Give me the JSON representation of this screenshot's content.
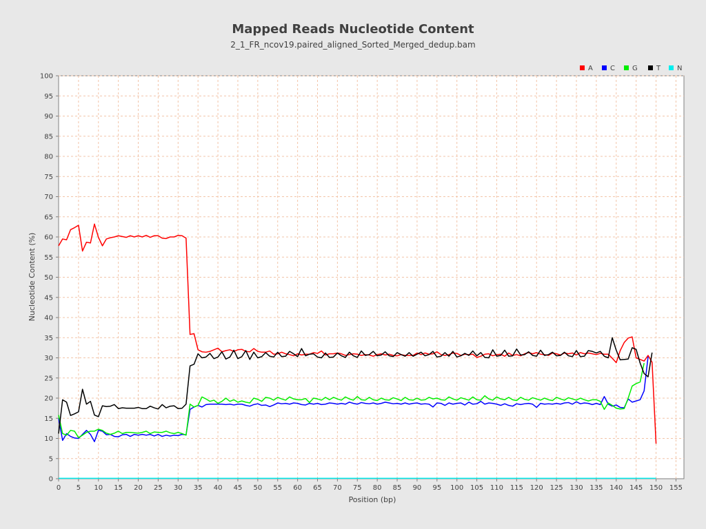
{
  "chart_data": {
    "type": "line",
    "title": "Mapped Reads Nucleotide Content",
    "subtitle": "2_1_FR_ncov19.paired_aligned_Sorted_Merged_dedup.bam",
    "xlabel": "Position (bp)",
    "ylabel": "Nucleotide Content (%)",
    "xlim": [
      0,
      157
    ],
    "ylim": [
      0,
      100
    ],
    "x_ticks": [
      0,
      5,
      10,
      15,
      20,
      25,
      30,
      35,
      40,
      45,
      50,
      55,
      60,
      65,
      70,
      75,
      80,
      85,
      90,
      95,
      100,
      105,
      110,
      115,
      120,
      125,
      130,
      135,
      140,
      145,
      150,
      155
    ],
    "y_ticks": [
      0,
      5,
      10,
      15,
      20,
      25,
      30,
      35,
      40,
      45,
      50,
      55,
      60,
      65,
      70,
      75,
      80,
      85,
      90,
      95,
      100
    ],
    "grid": true,
    "legend_position": "top-right",
    "series": [
      {
        "name": "A",
        "color": "#ff0000",
        "values": [
          57.8,
          59.5,
          59.3,
          61.8,
          62.3,
          62.9,
          56.5,
          58.7,
          58.5,
          63.2,
          59.9,
          57.8,
          59.5,
          59.8,
          60.0,
          60.3,
          60.1,
          59.9,
          60.3,
          60.0,
          60.3,
          60.0,
          60.4,
          59.9,
          60.3,
          60.3,
          59.7,
          59.6,
          60.0,
          60.0,
          60.4,
          60.3,
          59.7,
          35.8,
          36.0,
          32.0,
          31.5,
          31.4,
          31.6,
          32.0,
          32.4,
          31.5,
          31.8,
          32.0,
          31.6,
          32.0,
          32.1,
          31.6,
          31.5,
          32.3,
          31.6,
          31.4,
          31.4,
          31.7,
          30.9,
          31.0,
          31.4,
          31.0,
          30.8,
          30.5,
          31.0,
          30.7,
          30.9,
          30.9,
          31.3,
          31.1,
          31.7,
          30.7,
          31.0,
          31.0,
          31.2,
          31.0,
          30.6,
          30.8,
          31.0,
          30.9,
          30.6,
          30.8,
          30.7,
          30.4,
          30.8,
          31.0,
          30.7,
          30.9,
          30.6,
          30.5,
          30.8,
          30.6,
          30.6,
          30.6,
          31.2,
          30.8,
          31.2,
          30.9,
          31.0,
          31.5,
          30.8,
          30.6,
          30.8,
          31.2,
          31.1,
          30.6,
          30.9,
          30.8,
          30.9,
          30.1,
          30.4,
          30.9,
          31.0,
          30.5,
          30.8,
          30.9,
          30.4,
          31.2,
          30.6,
          30.8,
          30.5,
          31.0,
          31.3,
          31.0,
          31.3,
          30.9,
          30.8,
          30.6,
          31.2,
          31.0,
          30.7,
          31.2,
          31.0,
          31.2,
          30.7,
          31.3,
          31.0,
          31.2,
          31.0,
          30.8,
          31.1,
          30.9,
          30.9,
          29.9,
          28.8,
          31.8,
          33.8,
          34.9,
          35.2,
          30.0,
          29.6,
          29.2,
          30.6,
          28.9,
          8.7
        ]
      },
      {
        "name": "C",
        "color": "#0000ff",
        "values": [
          15.0,
          9.5,
          11.2,
          10.5,
          10.1,
          10.0,
          11.0,
          12.0,
          11.0,
          9.2,
          12.0,
          11.8,
          10.9,
          11.0,
          10.5,
          10.4,
          10.9,
          11.0,
          10.5,
          11.0,
          10.8,
          11.0,
          10.8,
          11.0,
          10.6,
          11.0,
          10.5,
          10.8,
          10.6,
          10.8,
          10.7,
          11.0,
          10.9,
          17.2,
          17.8,
          18.2,
          17.8,
          18.4,
          18.5,
          18.5,
          18.5,
          18.5,
          18.4,
          18.5,
          18.3,
          18.5,
          18.5,
          18.2,
          18.0,
          18.4,
          18.6,
          18.2,
          18.3,
          17.9,
          18.3,
          18.8,
          18.6,
          18.7,
          18.5,
          18.8,
          18.7,
          18.4,
          18.3,
          18.7,
          18.5,
          18.7,
          18.4,
          18.5,
          18.8,
          18.7,
          18.5,
          18.7,
          18.5,
          19.0,
          18.7,
          18.5,
          18.9,
          18.7,
          18.6,
          18.8,
          18.5,
          18.7,
          19.0,
          18.8,
          18.6,
          18.7,
          18.5,
          18.8,
          18.5,
          18.7,
          18.8,
          18.5,
          18.6,
          18.5,
          17.8,
          18.8,
          18.7,
          18.2,
          18.8,
          18.5,
          18.7,
          18.8,
          18.3,
          19.0,
          18.5,
          18.6,
          19.2,
          18.5,
          18.8,
          18.7,
          18.5,
          18.2,
          18.6,
          18.2,
          18.0,
          18.6,
          18.4,
          18.6,
          18.7,
          18.5,
          17.7,
          18.7,
          18.5,
          18.6,
          18.5,
          18.7,
          18.5,
          18.8,
          18.9,
          18.5,
          19.1,
          18.6,
          18.8,
          18.7,
          18.4,
          18.7,
          18.4,
          20.4,
          18.5,
          18.0,
          18.3,
          17.7,
          17.6,
          19.8,
          19.0,
          19.3,
          19.6,
          21.8,
          30.3
        ]
      },
      {
        "name": "G",
        "color": "#00ee00",
        "values": [
          15.8,
          11.2,
          10.8,
          12.0,
          11.8,
          10.2,
          10.8,
          11.5,
          11.8,
          11.8,
          12.3,
          12.0,
          11.3,
          11.0,
          11.3,
          11.8,
          11.2,
          11.5,
          11.5,
          11.4,
          11.3,
          11.5,
          11.8,
          11.2,
          11.6,
          11.5,
          11.5,
          11.8,
          11.4,
          11.2,
          11.5,
          11.2,
          10.8,
          18.5,
          17.8,
          18.2,
          20.3,
          19.8,
          19.2,
          19.5,
          18.7,
          19.2,
          20.0,
          19.2,
          19.6,
          19.0,
          19.3,
          19.0,
          18.8,
          20.0,
          19.7,
          19.2,
          20.2,
          20.0,
          19.5,
          20.2,
          19.8,
          19.5,
          20.3,
          19.8,
          19.6,
          19.6,
          19.9,
          18.9,
          20.0,
          19.8,
          19.5,
          20.2,
          19.6,
          20.2,
          19.8,
          19.5,
          20.3,
          19.8,
          19.5,
          20.4,
          19.6,
          19.5,
          20.2,
          19.6,
          19.4,
          20.0,
          19.6,
          19.5,
          20.1,
          19.8,
          19.4,
          20.2,
          19.6,
          19.5,
          20.0,
          19.5,
          19.6,
          20.2,
          19.8,
          20.0,
          19.6,
          19.5,
          20.3,
          19.8,
          19.5,
          20.1,
          19.8,
          19.5,
          20.3,
          19.6,
          19.5,
          20.6,
          19.8,
          19.5,
          20.3,
          19.8,
          19.6,
          20.2,
          19.6,
          19.4,
          20.2,
          19.7,
          19.5,
          20.1,
          19.8,
          19.5,
          20.0,
          19.6,
          19.4,
          20.2,
          19.8,
          19.5,
          20.1,
          19.8,
          19.5,
          20.0,
          19.6,
          19.3,
          19.6,
          19.6,
          19.2,
          17.2,
          18.8,
          18.2,
          17.5,
          17.3,
          17.4,
          20.0,
          23.0,
          23.6,
          24.0,
          28.7
        ]
      },
      {
        "name": "T",
        "color": "#000000",
        "values": [
          11.2,
          19.6,
          19.0,
          15.7,
          16.1,
          16.6,
          22.2,
          18.5,
          19.2,
          15.8,
          15.4,
          18.1,
          17.9,
          18.0,
          18.4,
          17.4,
          17.6,
          17.5,
          17.5,
          17.5,
          17.7,
          17.4,
          17.4,
          18.0,
          17.6,
          17.3,
          18.4,
          17.6,
          18.0,
          18.1,
          17.4,
          17.5,
          18.5,
          28.0,
          28.4,
          31.0,
          30.0,
          30.2,
          31.1,
          29.8,
          30.2,
          31.5,
          29.7,
          30.2,
          31.9,
          29.8,
          30.3,
          31.8,
          29.6,
          31.4,
          30.0,
          30.3,
          31.3,
          30.4,
          30.2,
          31.4,
          30.3,
          30.4,
          31.6,
          31.0,
          30.3,
          32.3,
          30.5,
          30.9,
          31.0,
          30.2,
          30.0,
          31.2,
          30.1,
          30.2,
          31.2,
          30.5,
          30.1,
          31.4,
          30.5,
          30.1,
          31.7,
          30.6,
          30.8,
          31.6,
          30.5,
          30.7,
          31.5,
          30.5,
          30.3,
          31.3,
          30.8,
          30.4,
          31.3,
          30.4,
          30.9,
          31.4,
          30.5,
          30.8,
          31.6,
          30.2,
          30.4,
          31.3,
          30.4,
          31.6,
          30.2,
          30.5,
          31.1,
          30.6,
          31.7,
          30.5,
          31.3,
          30.1,
          30.0,
          32.0,
          30.4,
          30.6,
          31.9,
          30.4,
          30.5,
          32.2,
          30.7,
          30.8,
          31.5,
          30.6,
          30.4,
          31.9,
          30.6,
          30.8,
          31.4,
          30.5,
          30.6,
          31.4,
          30.5,
          30.3,
          31.8,
          30.3,
          30.4,
          31.8,
          31.6,
          31.2,
          31.6,
          30.4,
          30.0,
          35.0,
          31.9,
          29.5,
          29.6,
          29.7,
          32.5,
          32.1,
          28.7,
          26.1,
          25.3,
          31.3
        ]
      },
      {
        "name": "N",
        "color": "#00eeee",
        "values": [
          0.1,
          0.1,
          0.1,
          0.1,
          0.1,
          0.1,
          0.1,
          0.1,
          0.1,
          0.1,
          0.1,
          0.1,
          0.1,
          0.1,
          0.1,
          0.1,
          0.1,
          0.1,
          0.1,
          0.1,
          0.1,
          0.1,
          0.1,
          0.1,
          0.1,
          0.1,
          0.1,
          0.1,
          0.1,
          0.1,
          0.1,
          0.1,
          0.1,
          0.1,
          0.1,
          0.1,
          0.1,
          0.1,
          0.1,
          0.1,
          0.1,
          0.1,
          0.1,
          0.1,
          0.1,
          0.1,
          0.1,
          0.1,
          0.1,
          0.1,
          0.1,
          0.1,
          0.1,
          0.1,
          0.1,
          0.1,
          0.1,
          0.1,
          0.1,
          0.1,
          0.1,
          0.1,
          0.1,
          0.1,
          0.1,
          0.1,
          0.1,
          0.1,
          0.1,
          0.1,
          0.1,
          0.1,
          0.1,
          0.1,
          0.1,
          0.1,
          0.1,
          0.1,
          0.1,
          0.1,
          0.1,
          0.1,
          0.1,
          0.1,
          0.1,
          0.1,
          0.1,
          0.1,
          0.1,
          0.1,
          0.1,
          0.1,
          0.1,
          0.1,
          0.1,
          0.1,
          0.1,
          0.1,
          0.1,
          0.1,
          0.1,
          0.1,
          0.1,
          0.1,
          0.1,
          0.1,
          0.1,
          0.1,
          0.1,
          0.1,
          0.1,
          0.1,
          0.1,
          0.1,
          0.1,
          0.1,
          0.1,
          0.1,
          0.1,
          0.1,
          0.1,
          0.1,
          0.1,
          0.1,
          0.1,
          0.1,
          0.1,
          0.1,
          0.1,
          0.1,
          0.1,
          0.1,
          0.1,
          0.1,
          0.1,
          0.1,
          0.1,
          0.1,
          0.1,
          0.1,
          0.1,
          0.1,
          0.1,
          0.1,
          0.1,
          0.1,
          0.1,
          0.1,
          0.1,
          0.1,
          0.1
        ]
      }
    ]
  }
}
